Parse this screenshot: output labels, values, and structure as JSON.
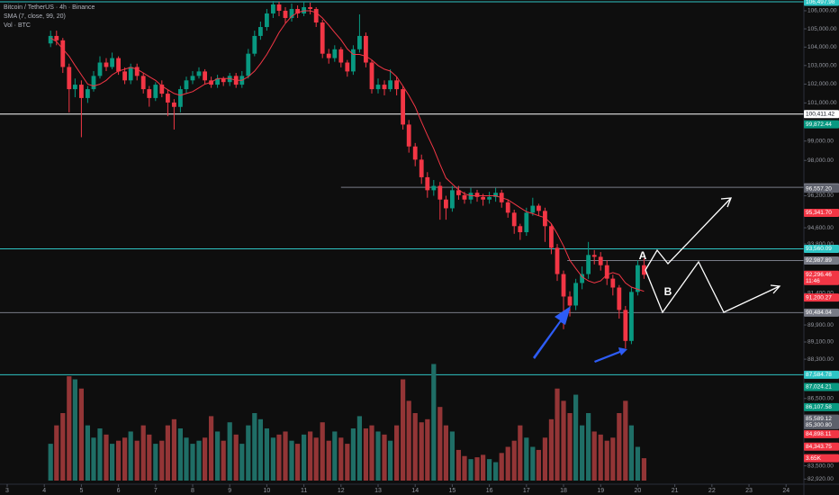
{
  "chart_data": {
    "type": "candlestick",
    "title": "Bitcoin / TetherUS · 4h · Binance",
    "indicator_label": "SMA (7, close, 99, 20)",
    "volume_title": "Vol · BTC",
    "log": true,
    "grid": false,
    "xlim": [
      2.806,
      24.48
    ],
    "xticks": [
      3,
      4,
      5,
      6,
      7,
      8,
      9,
      10,
      11,
      12,
      13,
      14,
      15,
      16,
      17,
      18,
      19,
      20,
      21,
      22,
      23,
      24
    ],
    "ylim": [
      82620,
      106600
    ],
    "yticks": [
      {
        "value": 106000,
        "label": "106,000.00"
      },
      {
        "value": 105000,
        "label": "105,000.00"
      },
      {
        "value": 104000,
        "label": "104,000.00"
      },
      {
        "value": 103000,
        "label": "103,000.00"
      },
      {
        "value": 102000,
        "label": "102,000.00"
      },
      {
        "value": 101000,
        "label": "101,000.00"
      },
      {
        "value": 99000,
        "label": "99,000.00"
      },
      {
        "value": 98000,
        "label": "98,000.00"
      },
      {
        "value": 96200,
        "label": "96,200.00"
      },
      {
        "value": 94600,
        "label": "94,600.00"
      },
      {
        "value": 93800,
        "label": "93,800.00"
      },
      {
        "value": 91400,
        "label": "91,400.00"
      },
      {
        "value": 89900,
        "label": "89,900.00"
      },
      {
        "value": 89100,
        "label": "89,100.00"
      },
      {
        "value": 88300,
        "label": "88,300.00"
      },
      {
        "value": 86500,
        "label": "86,500.00"
      },
      {
        "value": 83500,
        "label": "83,500.00"
      },
      {
        "value": 82920,
        "label": "82,920.00"
      }
    ],
    "up_color": "#089981",
    "down_color": "#f23645",
    "volume_up_color": "#1f6e66",
    "volume_down_color": "#933536",
    "sma_color": "#f23645",
    "volume_lim": [
      0,
      22000
    ],
    "x": [
      4.17,
      4.33,
      4.5,
      4.67,
      4.83,
      5,
      5.17,
      5.33,
      5.5,
      5.67,
      5.83,
      6,
      6.17,
      6.33,
      6.5,
      6.67,
      6.83,
      7,
      7.17,
      7.33,
      7.5,
      7.67,
      7.83,
      8,
      8.17,
      8.33,
      8.5,
      8.67,
      8.83,
      9,
      9.17,
      9.33,
      9.5,
      9.67,
      9.83,
      10,
      10.17,
      10.33,
      10.5,
      10.67,
      10.83,
      11,
      11.17,
      11.33,
      11.5,
      11.67,
      11.83,
      12,
      12.17,
      12.33,
      12.5,
      12.67,
      12.83,
      13,
      13.17,
      13.33,
      13.5,
      13.67,
      13.83,
      14,
      14.17,
      14.33,
      14.5,
      14.67,
      14.83,
      15,
      15.17,
      15.33,
      15.5,
      15.67,
      15.83,
      16,
      16.17,
      16.33,
      16.5,
      16.67,
      16.83,
      17,
      17.17,
      17.33,
      17.5,
      17.67,
      17.83,
      18,
      18.17,
      18.33,
      18.5,
      18.67,
      18.83,
      19,
      19.17,
      19.33,
      19.5,
      19.67,
      19.83,
      20,
      20.17
    ],
    "open": [
      104200,
      104610,
      104370,
      102920,
      101730,
      101970,
      101260,
      101730,
      102440,
      103160,
      102920,
      103400,
      102680,
      102200,
      102920,
      102440,
      101730,
      101260,
      101970,
      101490,
      101020,
      100790,
      101730,
      102200,
      102440,
      102680,
      102200,
      101970,
      102300,
      102110,
      102440,
      101970,
      102440,
      103640,
      104610,
      105100,
      105850,
      106350,
      106000,
      105600,
      106100,
      105850,
      106200,
      106100,
      105350,
      103640,
      103400,
      103880,
      103160,
      102680,
      103880,
      104610,
      103160,
      101730,
      101970,
      101730,
      102200,
      101730,
      99860,
      98720,
      98040,
      97140,
      96480,
      96700,
      96010,
      95570,
      96480,
      96230,
      96010,
      96350,
      96140,
      96010,
      96140,
      96350,
      95870,
      95350,
      94680,
      94380,
      95350,
      95700,
      95440,
      94680,
      93610,
      92330,
      91250,
      90820,
      91900,
      92330,
      93260,
      93170,
      92760,
      92110,
      91680,
      90610,
      89150,
      91470,
      92760
    ],
    "high": [
      104900,
      104900,
      104500,
      103100,
      102300,
      102200,
      101900,
      102700,
      103500,
      103400,
      103700,
      103500,
      102900,
      103100,
      103100,
      102600,
      101900,
      102100,
      102200,
      101700,
      101200,
      101900,
      102400,
      102700,
      102900,
      102800,
      102400,
      102500,
      102400,
      102600,
      102600,
      102700,
      103900,
      104900,
      105400,
      106100,
      106550,
      106500,
      106200,
      106400,
      106300,
      106500,
      106450,
      106200,
      105500,
      103900,
      104100,
      104000,
      103300,
      104100,
      105800,
      104800,
      103300,
      102300,
      102200,
      102800,
      102400,
      101900,
      100100,
      98900,
      98300,
      97400,
      97000,
      96900,
      96200,
      96700,
      96700,
      96400,
      96600,
      96500,
      96300,
      96400,
      96600,
      96500,
      96000,
      95500,
      94800,
      95600,
      96100,
      95800,
      95600,
      94800,
      93800,
      92500,
      91500,
      92100,
      92700,
      93900,
      93500,
      93400,
      93000,
      92300,
      91800,
      90800,
      91700,
      93000,
      93100
    ],
    "low": [
      104000,
      104100,
      102600,
      100500,
      101300,
      99200,
      101000,
      101600,
      102300,
      102700,
      102800,
      102500,
      102000,
      102000,
      102200,
      101500,
      100800,
      101100,
      101300,
      100300,
      99600,
      100500,
      101500,
      102000,
      102300,
      102000,
      101800,
      101800,
      101900,
      101900,
      101800,
      101800,
      102300,
      103500,
      104400,
      104900,
      105600,
      105700,
      105300,
      105400,
      105600,
      105700,
      105800,
      105100,
      103400,
      103100,
      103200,
      102900,
      102400,
      102500,
      103700,
      102900,
      101500,
      101500,
      101400,
      101600,
      101400,
      99600,
      98400,
      97700,
      96800,
      96100,
      96200,
      95000,
      95000,
      95400,
      96000,
      95800,
      95800,
      95900,
      95700,
      95800,
      95900,
      95600,
      95100,
      94300,
      94000,
      94200,
      95200,
      95200,
      93900,
      93300,
      92000,
      89700,
      90300,
      90600,
      91600,
      92100,
      92800,
      92500,
      91800,
      91300,
      90200,
      88800,
      89000,
      91300,
      92100
    ],
    "close": [
      104610,
      104370,
      102920,
      101730,
      101970,
      101260,
      101730,
      102440,
      103160,
      102920,
      103400,
      102680,
      102200,
      102920,
      102440,
      101730,
      101260,
      101970,
      101490,
      101020,
      100790,
      101730,
      102200,
      102440,
      102680,
      102200,
      101970,
      102300,
      102110,
      102440,
      101970,
      102440,
      103640,
      104610,
      105100,
      105850,
      106350,
      106000,
      105600,
      106100,
      105850,
      106200,
      106100,
      105350,
      103640,
      103400,
      103880,
      103160,
      102680,
      103880,
      104610,
      103160,
      101730,
      101970,
      101730,
      102200,
      101730,
      99860,
      98720,
      98040,
      97140,
      96480,
      96700,
      96010,
      95570,
      96480,
      96230,
      96010,
      96350,
      96140,
      96010,
      96140,
      96350,
      95870,
      95350,
      94680,
      94380,
      95350,
      95700,
      95440,
      94680,
      93610,
      92330,
      91250,
      90820,
      91900,
      92330,
      93260,
      93170,
      92760,
      92110,
      91680,
      90610,
      89150,
      91470,
      92760,
      92296
    ],
    "volume": [
      6000,
      9000,
      11000,
      17000,
      16500,
      15000,
      9000,
      7000,
      8500,
      7500,
      6000,
      6500,
      7000,
      8000,
      6500,
      9000,
      7500,
      6000,
      6500,
      9000,
      10000,
      8500,
      7000,
      6000,
      6500,
      7000,
      10500,
      8000,
      6500,
      9500,
      7500,
      6000,
      9000,
      11000,
      10000,
      8500,
      7000,
      7500,
      8000,
      6500,
      6000,
      7500,
      8000,
      7000,
      9500,
      6500,
      8000,
      7000,
      6000,
      8500,
      10500,
      8500,
      9000,
      8000,
      7500,
      6500,
      9000,
      16500,
      13000,
      11000,
      9500,
      10000,
      19000,
      12000,
      9000,
      8000,
      5000,
      4000,
      3500,
      3800,
      4200,
      3500,
      3000,
      4500,
      5500,
      6500,
      9000,
      7000,
      5500,
      5000,
      7000,
      10000,
      15000,
      13000,
      11000,
      14000,
      9000,
      11000,
      8000,
      7500,
      6500,
      7000,
      11000,
      13000,
      9000,
      5500,
      3650
    ],
    "volume_label": {
      "value": 3650,
      "label": "3.65K",
      "color": "#f23645"
    },
    "sma": [
      104500,
      104300,
      103900,
      103500,
      103000,
      102500,
      102000,
      101900,
      102000,
      102200,
      102500,
      102700,
      102800,
      102900,
      102800,
      102600,
      102400,
      102200,
      101900,
      101700,
      101500,
      101400,
      101500,
      101600,
      101800,
      102000,
      102100,
      102300,
      102300,
      102300,
      102200,
      102200,
      102400,
      102700,
      103100,
      103600,
      104200,
      104800,
      105300,
      105700,
      105900,
      106000,
      106000,
      105900,
      105600,
      105200,
      104800,
      104400,
      103900,
      103600,
      103600,
      103500,
      103300,
      103000,
      102800,
      102700,
      102400,
      101900,
      101400,
      100800,
      100000,
      99300,
      98600,
      97800,
      97100,
      96800,
      96500,
      96300,
      96200,
      96200,
      96200,
      96200,
      96200,
      96100,
      96000,
      95800,
      95600,
      95400,
      95300,
      95200,
      95100,
      94800,
      94300,
      93700,
      93000,
      92600,
      92200,
      92000,
      91900,
      92000,
      92300,
      92400,
      92300,
      91900,
      91700,
      91600,
      91500
    ],
    "price_labels": [
      {
        "value": 106497.98,
        "label": "106,497.98",
        "color": "#2ec4c4",
        "line_from": 2.806
      },
      {
        "value": 100411.42,
        "label": "100,411.42",
        "color": "#ffffff",
        "line_from": 2.806
      },
      {
        "value": 99872.44,
        "label": "99,872.44",
        "color": "#089981"
      },
      {
        "value": 96627.59,
        "label": "96,627.59",
        "color": "#787b86",
        "line_from": 12
      },
      {
        "value": 96557.2,
        "label": "96,557.20",
        "color": "#5d606b"
      },
      {
        "value": 95341.7,
        "label": "95,341.70",
        "color": "#f23645"
      },
      {
        "value": 93560.09,
        "label": "93,560.09",
        "color": "#2ec4c4",
        "line_from": 2.806
      },
      {
        "value": 92987.89,
        "label": "92,987.89",
        "color": "#787b86",
        "line_from": 18.1
      },
      {
        "value": 92296.46,
        "label": "92,296.46",
        "sublabel": "11:46",
        "color": "#f23645"
      },
      {
        "value": 91200.27,
        "label": "91,200.27",
        "color": "#f23645"
      },
      {
        "value": 90484.04,
        "label": "90,484.04",
        "color": "#787b86",
        "line_from": 2.806
      },
      {
        "value": 87584.78,
        "label": "87,584.78",
        "color": "#2ec4c4",
        "line_from": 2.806
      },
      {
        "value": 87024.21,
        "label": "87,024.21",
        "color": "#089981"
      },
      {
        "value": 86107.58,
        "label": "86,107.58",
        "color": "#089981"
      },
      {
        "value": 85589.12,
        "label": "85,589.12",
        "color": "#5d606b"
      },
      {
        "value": 85300.8,
        "label": "85,300.80",
        "color": "#5d606b"
      },
      {
        "value": 84898.11,
        "label": "84,898.11",
        "color": "#f23645"
      },
      {
        "value": 84343.75,
        "label": "84,343.75",
        "color": "#f23645"
      }
    ],
    "annotations": [
      "A",
      "B"
    ]
  }
}
